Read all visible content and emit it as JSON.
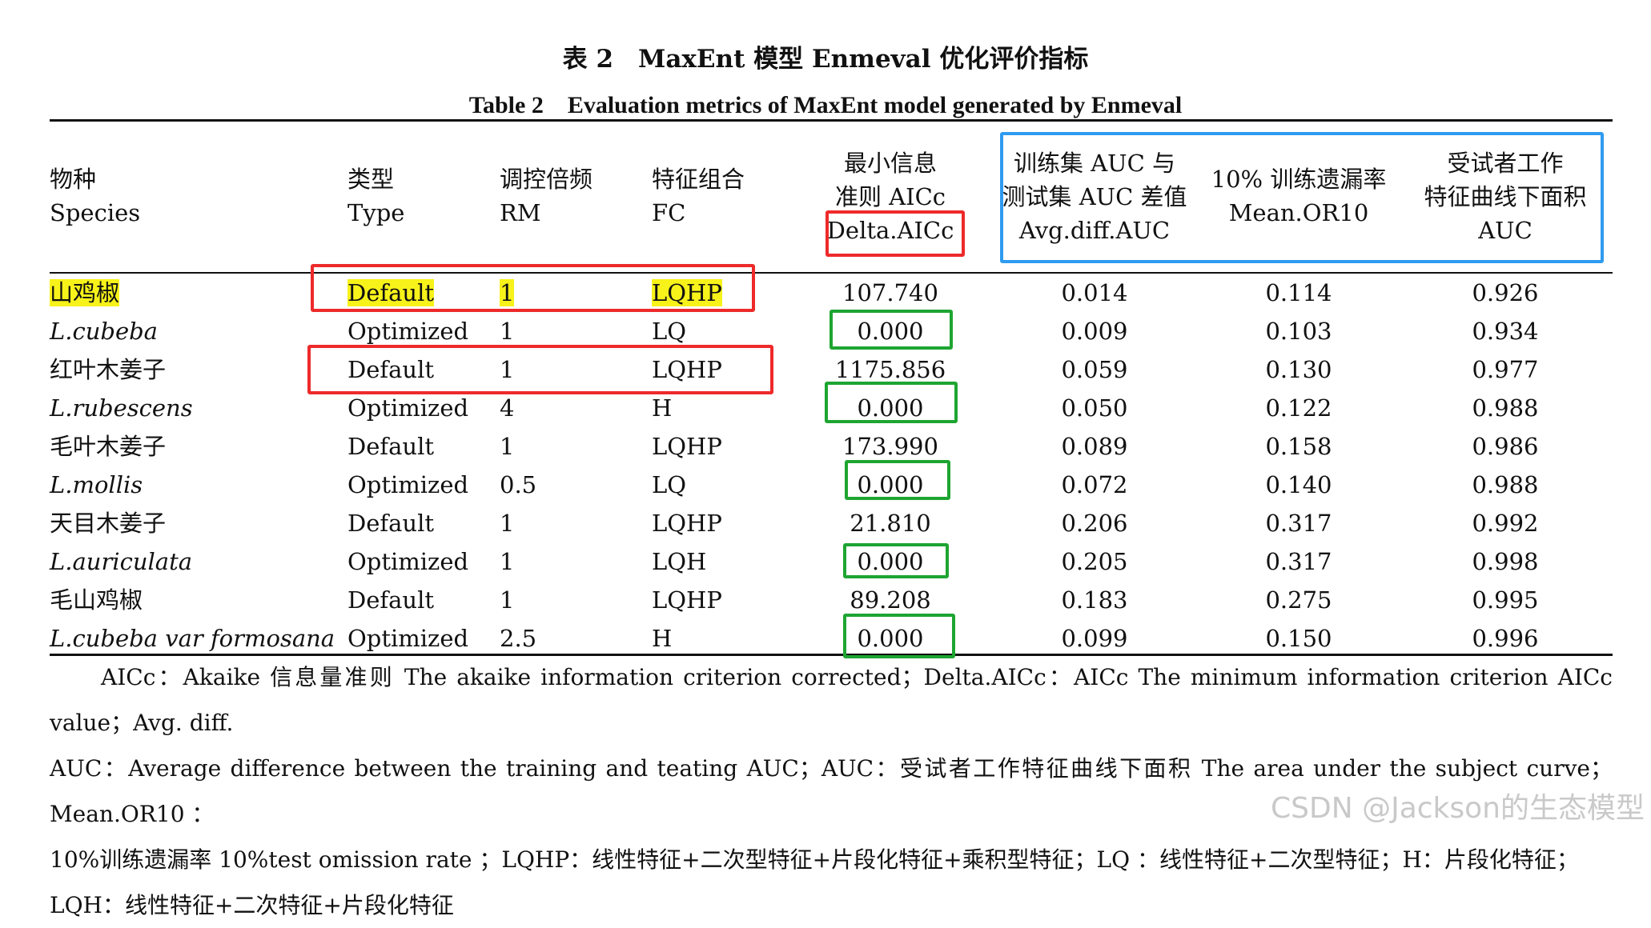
{
  "title_cn": "表 2　MaxEnt 模型 Enmeval 优化评价指标",
  "title_en": "Table 2　Evaluation metrics of MaxEnt model generated by Enmeval",
  "headers": {
    "species": [
      "物种",
      "Species"
    ],
    "type": [
      "类型",
      "Type"
    ],
    "rm": [
      "调控倍频",
      "RM"
    ],
    "fc": [
      "特征组合",
      "FC"
    ],
    "aicc": [
      "最小信息",
      "准则 AICc",
      "Delta.AICc"
    ],
    "avgdiff": [
      "训练集 AUC 与",
      "测试集 AUC 差值",
      "Avg.diff.AUC"
    ],
    "or10": [
      "10% 训练遗漏率",
      "Mean.OR10"
    ],
    "auc": [
      "受试者工作",
      "特征曲线下面积",
      "AUC"
    ]
  },
  "rows": [
    {
      "species": "山鸡椒",
      "type": "Default",
      "rm": "1",
      "fc": "LQHP",
      "aicc": "107.740",
      "avgdiff": "0.014",
      "or10": "0.114",
      "auc": "0.926"
    },
    {
      "species": "L.cubeba",
      "type": "Optimized",
      "rm": "1",
      "fc": "LQ",
      "aicc": "0.000",
      "avgdiff": "0.009",
      "or10": "0.103",
      "auc": "0.934"
    },
    {
      "species": "红叶木姜子",
      "type": "Default",
      "rm": "1",
      "fc": "LQHP",
      "aicc": "1175.856",
      "avgdiff": "0.059",
      "or10": "0.130",
      "auc": "0.977"
    },
    {
      "species": "L.rubescens",
      "type": "Optimized",
      "rm": "4",
      "fc": "H",
      "aicc": "0.000",
      "avgdiff": "0.050",
      "or10": "0.122",
      "auc": "0.988"
    },
    {
      "species": "毛叶木姜子",
      "type": "Default",
      "rm": "1",
      "fc": "LQHP",
      "aicc": "173.990",
      "avgdiff": "0.089",
      "or10": "0.158",
      "auc": "0.986"
    },
    {
      "species": "L.mollis",
      "type": "Optimized",
      "rm": "0.5",
      "fc": "LQ",
      "aicc": "0.000",
      "avgdiff": "0.072",
      "or10": "0.140",
      "auc": "0.988"
    },
    {
      "species": "天目木姜子",
      "type": "Default",
      "rm": "1",
      "fc": "LQHP",
      "aicc": "21.810",
      "avgdiff": "0.206",
      "or10": "0.317",
      "auc": "0.992"
    },
    {
      "species": "L.auriculata",
      "type": "Optimized",
      "rm": "1",
      "fc": "LQH",
      "aicc": "0.000",
      "avgdiff": "0.205",
      "or10": "0.317",
      "auc": "0.998"
    },
    {
      "species": "毛山鸡椒",
      "type": "Default",
      "rm": "1",
      "fc": "LQHP",
      "aicc": "89.208",
      "avgdiff": "0.183",
      "or10": "0.275",
      "auc": "0.995"
    },
    {
      "species": "L.cubeba var formosana",
      "type": "Optimized",
      "rm": "2.5",
      "fc": "H",
      "aicc": "0.000",
      "avgdiff": "0.099",
      "or10": "0.150",
      "auc": "0.996"
    }
  ],
  "footnote": [
    "AICc：Akaike 信息量准则 The akaike information criterion corrected；Delta.AICc：AICc The minimum information criterion AICc value；Avg. diff.",
    "AUC：Average difference between the training and teating AUC；AUC：受试者工作特征曲线下面积 The area under the subject curve；Mean.OR10 ：",
    "10%训练遗漏率 10%test omission rate ；LQHP：线性特征+二次型特征+片段化特征+乘积型特征；LQ ：线性特征+二次型特征；H：片段化特征；",
    "LQH：线性特征+二次特征+片段化特征"
  ],
  "watermark": "CSDN @Jackson的生态模型",
  "colors": {
    "highlight": "#f7f21a",
    "red_box": "#ee2a2a",
    "blue_box": "#2f9bf0",
    "green_box": "#1ea531"
  }
}
